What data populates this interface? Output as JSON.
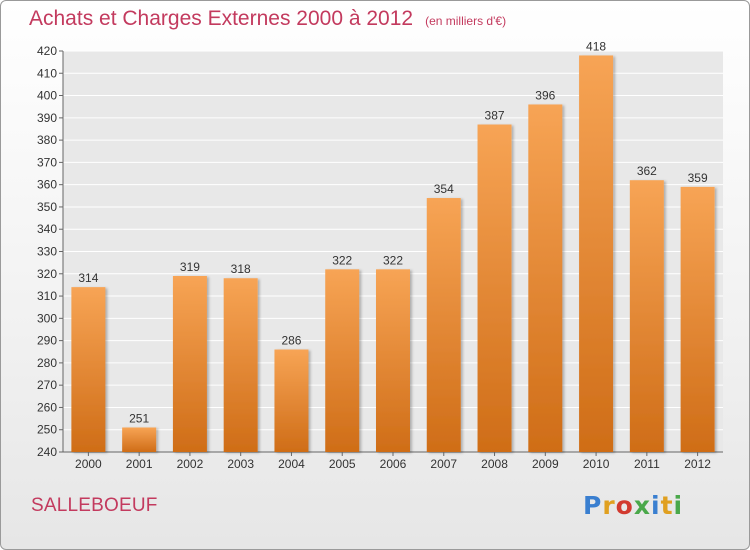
{
  "header": {
    "title": "Achats et Charges Externes 2000 à 2012",
    "subtitle": "(en milliers d'€)"
  },
  "location": "SALLEBOEUF",
  "brand": {
    "logo_text": "Proxiti"
  },
  "colors": {
    "bar_top": "#f7a455",
    "bar_bottom": "#cf6d17",
    "title": "#c33a5e",
    "grid": "#ffffff"
  },
  "chart_data": {
    "type": "bar",
    "title": "Achats et Charges Externes 2000 à 2012",
    "subtitle": "(en milliers d'€)",
    "categories": [
      "2000",
      "2001",
      "2002",
      "2003",
      "2004",
      "2005",
      "2006",
      "2007",
      "2008",
      "2009",
      "2010",
      "2011",
      "2012"
    ],
    "values": [
      314,
      251,
      319,
      318,
      286,
      322,
      322,
      354,
      387,
      396,
      418,
      362,
      359
    ],
    "ylim": [
      240,
      420
    ],
    "yticks": [
      240,
      250,
      260,
      270,
      280,
      290,
      300,
      310,
      320,
      330,
      340,
      350,
      360,
      370,
      380,
      390,
      400,
      410,
      420
    ],
    "grid": true,
    "data_labels": true
  }
}
